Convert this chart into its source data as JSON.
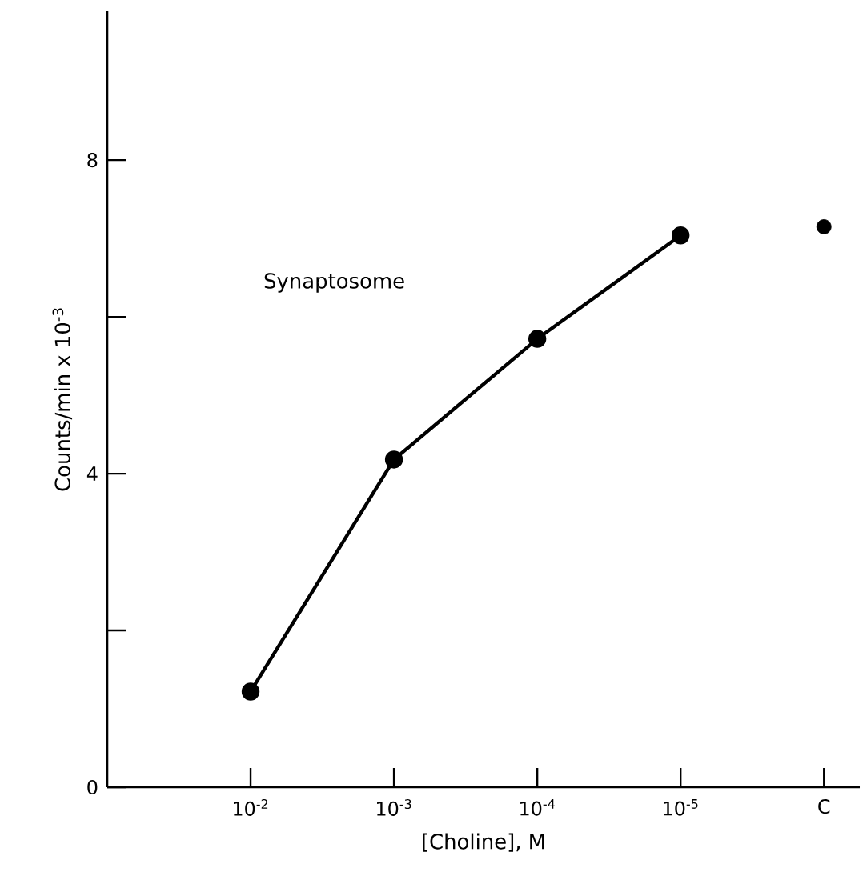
{
  "chart_data": {
    "type": "line",
    "xlabel": "[Choline],  M",
    "ylabel": "Counts/min x 10$^{-3}$",
    "annotations": [
      "Synaptosome"
    ],
    "categories": [
      "10$^{-2}$",
      "10$^{-3}$",
      "10$^{-4}$",
      "10$^{-5}$",
      "C"
    ],
    "series": [
      {
        "color": "#000000",
        "values": [
          1.22,
          4.18,
          5.72,
          7.04,
          null
        ]
      },
      {
        "type": "scatter",
        "color": "#000000",
        "values": [
          null,
          null,
          null,
          null,
          7.15
        ]
      }
    ],
    "marker": "circle",
    "line_style": "solid",
    "ylim": [
      0,
      9.9
    ],
    "yticks": [
      0,
      {
        "value": 2,
        "label": null
      },
      4,
      {
        "value": 6,
        "label": null
      },
      8
    ]
  }
}
